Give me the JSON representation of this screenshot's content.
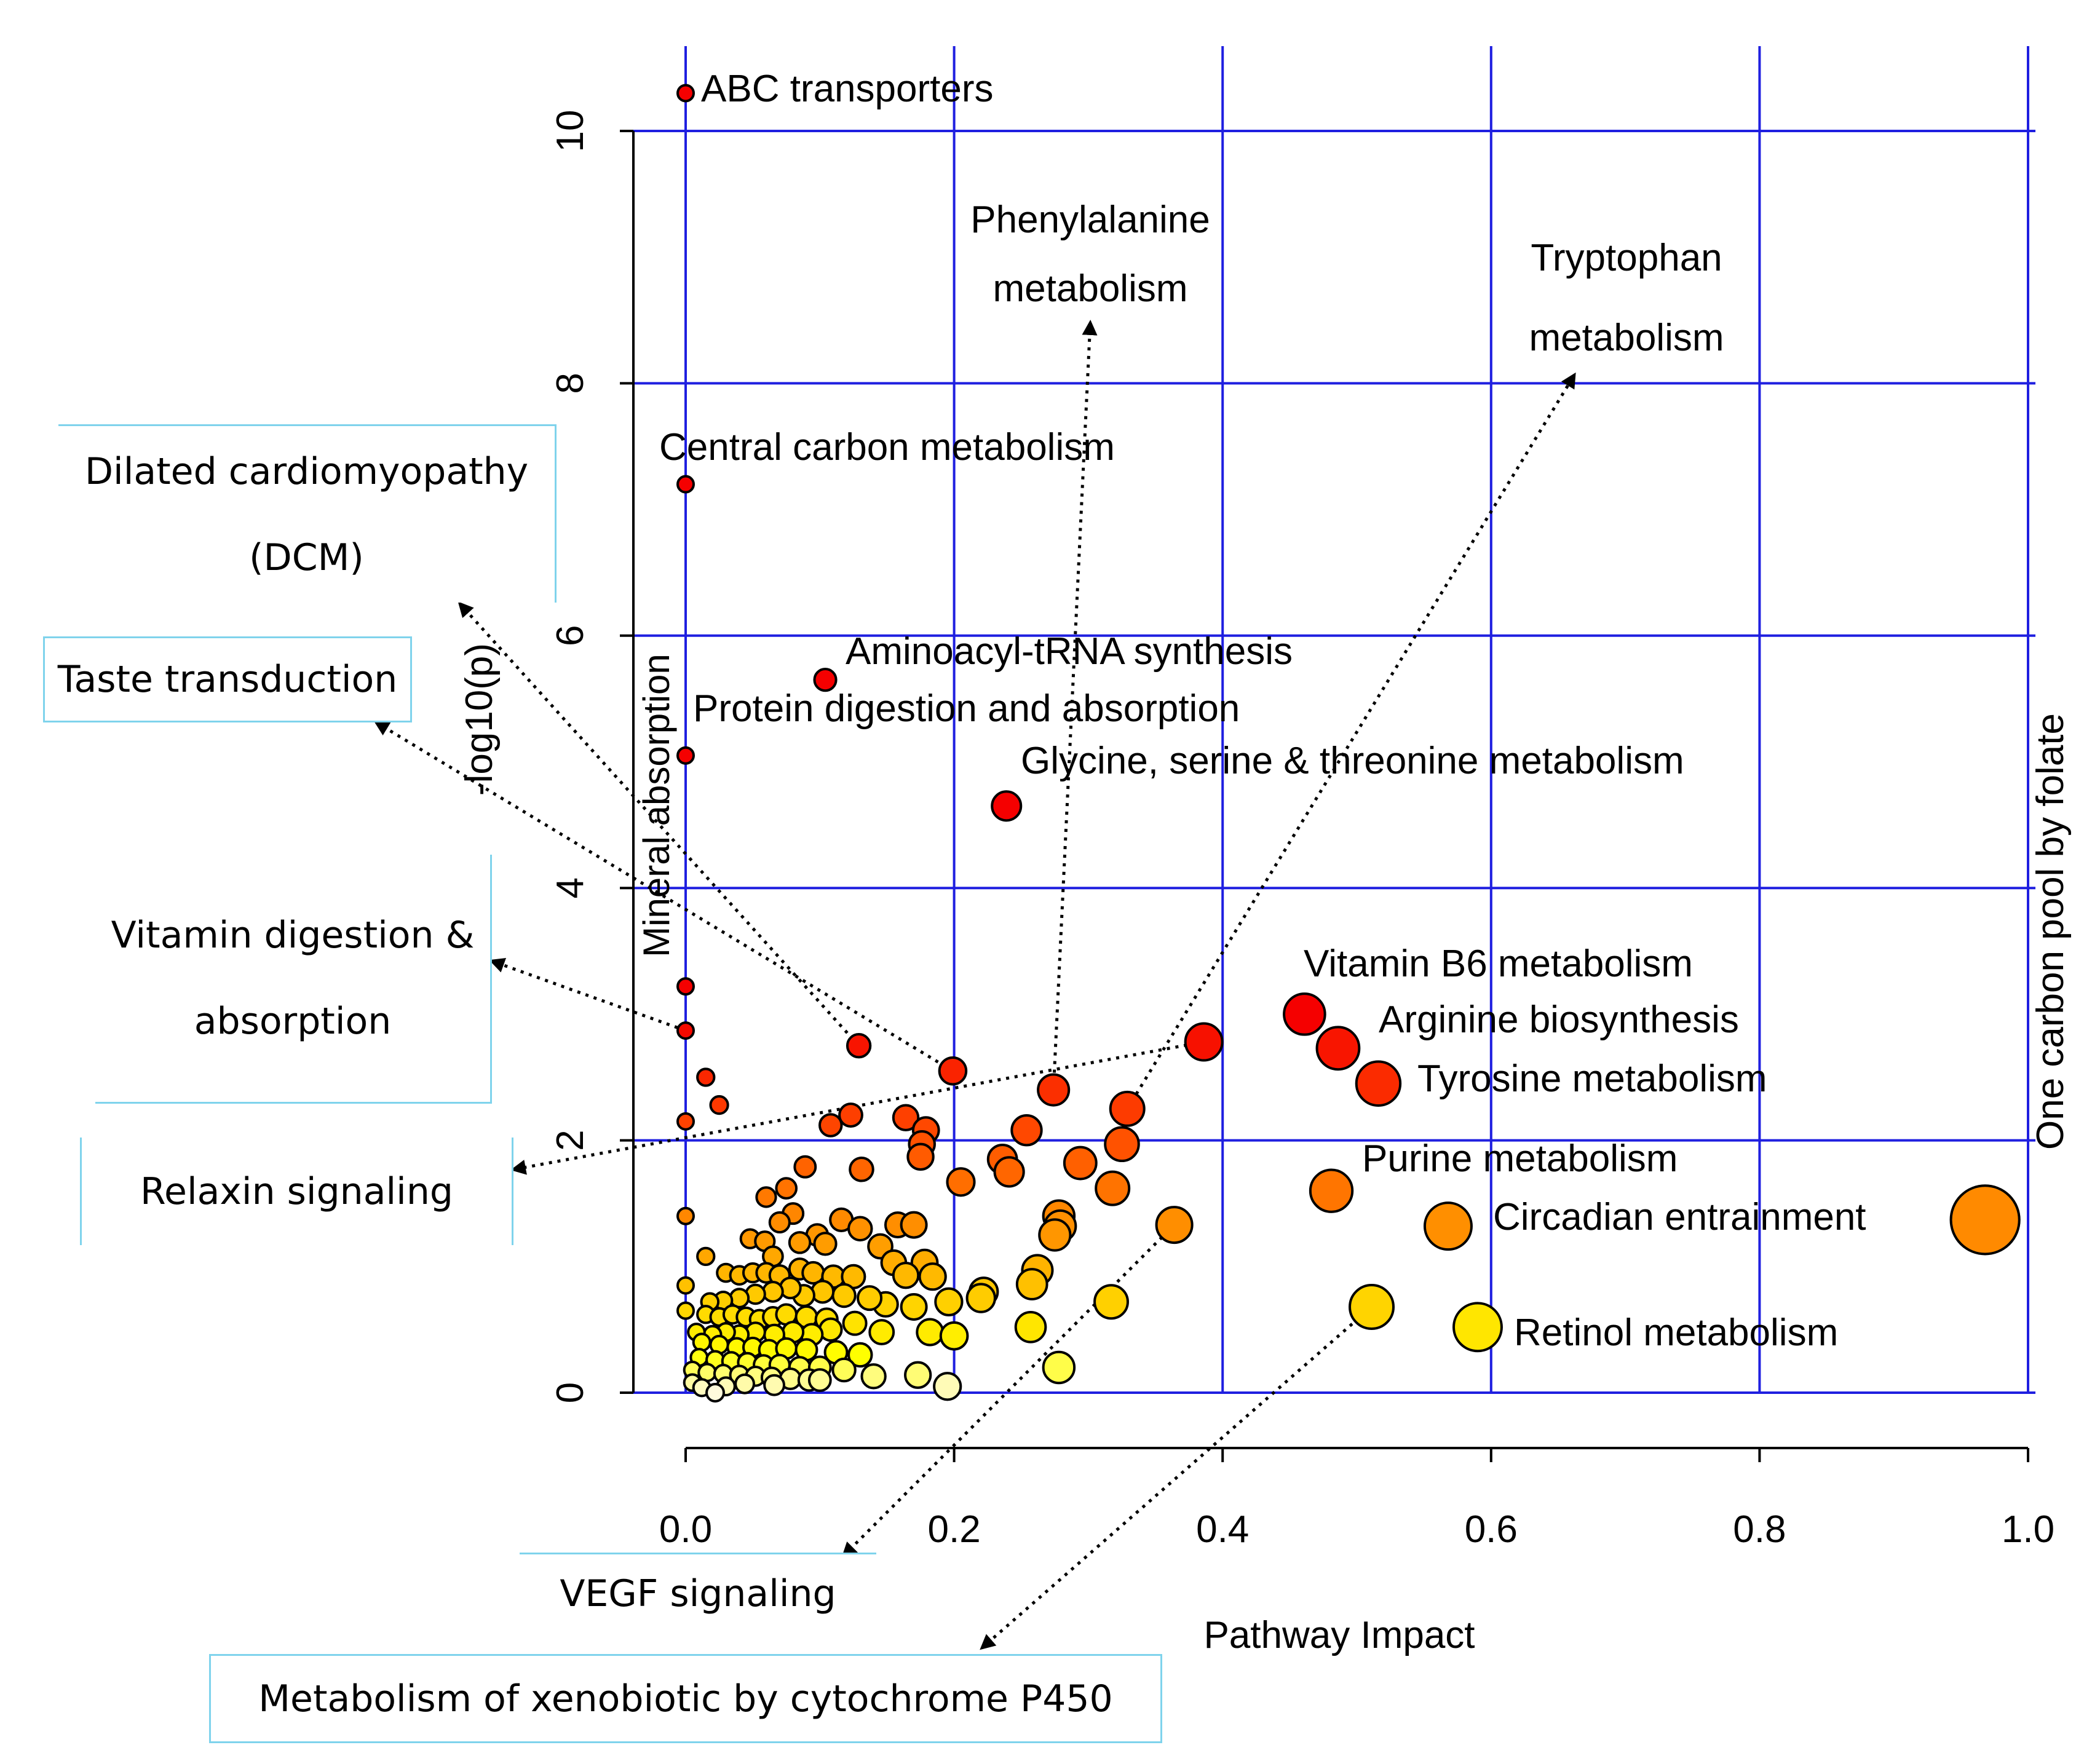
{
  "chart_data": {
    "type": "scatter",
    "title": "",
    "xlabel": "Pathway Impact",
    "ylabel": "-log10(p)",
    "xlim": [
      0.0,
      1.0
    ],
    "ylim": [
      0,
      10
    ],
    "x_ticks": [
      "0.0",
      "0.2",
      "0.4",
      "0.6",
      "0.8",
      "1.0"
    ],
    "y_ticks": [
      "0",
      "2",
      "4",
      "6",
      "8",
      "10"
    ],
    "grid": true,
    "color_scale": "p-value (white = low significance, yellow, orange, red = high significance)",
    "points": [
      {
        "x": 0.0,
        "y": 10.3,
        "label": "ABC transporters"
      },
      {
        "x": 0.0,
        "y": 7.2,
        "label": "Central carbon metabolism"
      },
      {
        "x": 0.104,
        "y": 5.65,
        "label": "Aminoacyl-tRNA synthesis"
      },
      {
        "x": 0.0,
        "y": 5.05,
        "label": "Protein digestion and absorption"
      },
      {
        "x": 0.239,
        "y": 4.65,
        "label": "Glycine, serine & threonine metabolism"
      },
      {
        "x": 0.461,
        "y": 3.0,
        "label": "Vitamin B6 metabolism"
      },
      {
        "x": 0.486,
        "y": 2.73,
        "label": "Arginine biosynthesis"
      },
      {
        "x": 0.516,
        "y": 2.45,
        "label": "Tyrosine metabolism"
      },
      {
        "x": 0.481,
        "y": 1.6,
        "label": "Purine metabolism"
      },
      {
        "x": 0.568,
        "y": 1.32,
        "label": "Circadian entrainment"
      },
      {
        "x": 0.59,
        "y": 0.52,
        "label": "Retinol metabolism"
      },
      {
        "x": 0.968,
        "y": 1.37,
        "label": "One carbon pool by folate"
      },
      {
        "x": 0.386,
        "y": 2.78,
        "label": ""
      },
      {
        "x": 0.0,
        "y": 3.22,
        "label": ""
      },
      {
        "x": 0.0,
        "y": 2.87,
        "label": ""
      },
      {
        "x": 0.015,
        "y": 2.5,
        "label": ""
      },
      {
        "x": 0.025,
        "y": 2.28,
        "label": ""
      },
      {
        "x": 0.0,
        "y": 2.15,
        "label": ""
      },
      {
        "x": 0.0,
        "y": 1.4,
        "label": ""
      },
      {
        "x": 0.0,
        "y": 0.85,
        "label": ""
      },
      {
        "x": 0.0,
        "y": 0.65,
        "label": ""
      },
      {
        "x": 0.129,
        "y": 2.75,
        "label": ""
      },
      {
        "x": 0.199,
        "y": 2.55,
        "label": ""
      },
      {
        "x": 0.274,
        "y": 2.4,
        "label": ""
      },
      {
        "x": 0.329,
        "y": 2.25,
        "label": ""
      },
      {
        "x": 0.123,
        "y": 2.2,
        "label": ""
      },
      {
        "x": 0.108,
        "y": 2.12,
        "label": ""
      },
      {
        "x": 0.164,
        "y": 2.18,
        "label": ""
      },
      {
        "x": 0.179,
        "y": 2.08,
        "label": ""
      },
      {
        "x": 0.254,
        "y": 2.08,
        "label": ""
      },
      {
        "x": 0.176,
        "y": 1.97,
        "label": ""
      },
      {
        "x": 0.175,
        "y": 1.87,
        "label": ""
      },
      {
        "x": 0.325,
        "y": 1.97,
        "label": ""
      },
      {
        "x": 0.236,
        "y": 1.85,
        "label": ""
      },
      {
        "x": 0.294,
        "y": 1.82,
        "label": ""
      },
      {
        "x": 0.089,
        "y": 1.79,
        "label": ""
      },
      {
        "x": 0.131,
        "y": 1.77,
        "label": ""
      },
      {
        "x": 0.241,
        "y": 1.75,
        "label": ""
      },
      {
        "x": 0.075,
        "y": 1.62,
        "label": ""
      },
      {
        "x": 0.205,
        "y": 1.67,
        "label": ""
      },
      {
        "x": 0.06,
        "y": 1.55,
        "label": ""
      },
      {
        "x": 0.318,
        "y": 1.62,
        "label": ""
      },
      {
        "x": 0.08,
        "y": 1.42,
        "label": ""
      },
      {
        "x": 0.07,
        "y": 1.35,
        "label": ""
      },
      {
        "x": 0.116,
        "y": 1.37,
        "label": ""
      },
      {
        "x": 0.158,
        "y": 1.33,
        "label": ""
      },
      {
        "x": 0.17,
        "y": 1.33,
        "label": ""
      },
      {
        "x": 0.278,
        "y": 1.4,
        "label": ""
      },
      {
        "x": 0.279,
        "y": 1.32,
        "label": ""
      },
      {
        "x": 0.364,
        "y": 1.33,
        "label": ""
      },
      {
        "x": 0.13,
        "y": 1.3,
        "label": ""
      },
      {
        "x": 0.275,
        "y": 1.25,
        "label": ""
      },
      {
        "x": 0.098,
        "y": 1.25,
        "label": ""
      },
      {
        "x": 0.048,
        "y": 1.22,
        "label": ""
      },
      {
        "x": 0.059,
        "y": 1.2,
        "label": ""
      },
      {
        "x": 0.085,
        "y": 1.19,
        "label": ""
      },
      {
        "x": 0.104,
        "y": 1.18,
        "label": ""
      },
      {
        "x": 0.145,
        "y": 1.16,
        "label": ""
      },
      {
        "x": 0.065,
        "y": 1.08,
        "label": ""
      },
      {
        "x": 0.015,
        "y": 1.08,
        "label": ""
      },
      {
        "x": 0.155,
        "y": 1.03,
        "label": ""
      },
      {
        "x": 0.178,
        "y": 1.03,
        "label": ""
      },
      {
        "x": 0.262,
        "y": 0.97,
        "label": ""
      },
      {
        "x": 0.258,
        "y": 0.86,
        "label": ""
      },
      {
        "x": 0.03,
        "y": 0.95,
        "label": ""
      },
      {
        "x": 0.04,
        "y": 0.93,
        "label": ""
      },
      {
        "x": 0.05,
        "y": 0.95,
        "label": ""
      },
      {
        "x": 0.06,
        "y": 0.95,
        "label": ""
      },
      {
        "x": 0.07,
        "y": 0.93,
        "label": ""
      },
      {
        "x": 0.085,
        "y": 0.98,
        "label": ""
      },
      {
        "x": 0.095,
        "y": 0.95,
        "label": ""
      },
      {
        "x": 0.11,
        "y": 0.92,
        "label": ""
      },
      {
        "x": 0.125,
        "y": 0.92,
        "label": ""
      },
      {
        "x": 0.164,
        "y": 0.93,
        "label": ""
      },
      {
        "x": 0.184,
        "y": 0.92,
        "label": ""
      },
      {
        "x": 0.222,
        "y": 0.8,
        "label": ""
      },
      {
        "x": 0.22,
        "y": 0.75,
        "label": ""
      },
      {
        "x": 0.317,
        "y": 0.72,
        "label": ""
      },
      {
        "x": 0.196,
        "y": 0.72,
        "label": ""
      },
      {
        "x": 0.149,
        "y": 0.7,
        "label": ""
      },
      {
        "x": 0.17,
        "y": 0.68,
        "label": ""
      },
      {
        "x": 0.137,
        "y": 0.75,
        "label": ""
      },
      {
        "x": 0.118,
        "y": 0.77,
        "label": ""
      },
      {
        "x": 0.102,
        "y": 0.8,
        "label": ""
      },
      {
        "x": 0.088,
        "y": 0.77,
        "label": ""
      },
      {
        "x": 0.078,
        "y": 0.83,
        "label": ""
      },
      {
        "x": 0.065,
        "y": 0.8,
        "label": ""
      },
      {
        "x": 0.052,
        "y": 0.78,
        "label": ""
      },
      {
        "x": 0.04,
        "y": 0.75,
        "label": ""
      },
      {
        "x": 0.028,
        "y": 0.73,
        "label": ""
      },
      {
        "x": 0.018,
        "y": 0.72,
        "label": ""
      },
      {
        "x": 0.015,
        "y": 0.62,
        "label": ""
      },
      {
        "x": 0.025,
        "y": 0.6,
        "label": ""
      },
      {
        "x": 0.035,
        "y": 0.62,
        "label": ""
      },
      {
        "x": 0.045,
        "y": 0.6,
        "label": ""
      },
      {
        "x": 0.055,
        "y": 0.58,
        "label": ""
      },
      {
        "x": 0.065,
        "y": 0.6,
        "label": ""
      },
      {
        "x": 0.075,
        "y": 0.62,
        "label": ""
      },
      {
        "x": 0.09,
        "y": 0.6,
        "label": ""
      },
      {
        "x": 0.105,
        "y": 0.58,
        "label": ""
      },
      {
        "x": 0.126,
        "y": 0.55,
        "label": ""
      },
      {
        "x": 0.257,
        "y": 0.52,
        "label": ""
      },
      {
        "x": 0.511,
        "y": 0.68,
        "label": ""
      },
      {
        "x": 0.182,
        "y": 0.48,
        "label": ""
      },
      {
        "x": 0.2,
        "y": 0.45,
        "label": ""
      },
      {
        "x": 0.146,
        "y": 0.48,
        "label": ""
      },
      {
        "x": 0.108,
        "y": 0.5,
        "label": ""
      },
      {
        "x": 0.094,
        "y": 0.46,
        "label": ""
      },
      {
        "x": 0.08,
        "y": 0.48,
        "label": ""
      },
      {
        "x": 0.066,
        "y": 0.46,
        "label": ""
      },
      {
        "x": 0.052,
        "y": 0.48,
        "label": ""
      },
      {
        "x": 0.04,
        "y": 0.46,
        "label": ""
      },
      {
        "x": 0.03,
        "y": 0.48,
        "label": ""
      },
      {
        "x": 0.02,
        "y": 0.46,
        "label": ""
      },
      {
        "x": 0.008,
        "y": 0.48,
        "label": ""
      },
      {
        "x": 0.012,
        "y": 0.4,
        "label": ""
      },
      {
        "x": 0.025,
        "y": 0.38,
        "label": ""
      },
      {
        "x": 0.038,
        "y": 0.36,
        "label": ""
      },
      {
        "x": 0.05,
        "y": 0.36,
        "label": ""
      },
      {
        "x": 0.062,
        "y": 0.34,
        "label": ""
      },
      {
        "x": 0.075,
        "y": 0.35,
        "label": ""
      },
      {
        "x": 0.09,
        "y": 0.34,
        "label": ""
      },
      {
        "x": 0.112,
        "y": 0.32,
        "label": ""
      },
      {
        "x": 0.13,
        "y": 0.3,
        "label": ""
      },
      {
        "x": 0.01,
        "y": 0.28,
        "label": ""
      },
      {
        "x": 0.022,
        "y": 0.26,
        "label": ""
      },
      {
        "x": 0.034,
        "y": 0.25,
        "label": ""
      },
      {
        "x": 0.046,
        "y": 0.24,
        "label": ""
      },
      {
        "x": 0.058,
        "y": 0.22,
        "label": ""
      },
      {
        "x": 0.07,
        "y": 0.22,
        "label": ""
      },
      {
        "x": 0.085,
        "y": 0.2,
        "label": ""
      },
      {
        "x": 0.1,
        "y": 0.2,
        "label": ""
      },
      {
        "x": 0.118,
        "y": 0.18,
        "label": ""
      },
      {
        "x": 0.005,
        "y": 0.18,
        "label": ""
      },
      {
        "x": 0.016,
        "y": 0.16,
        "label": ""
      },
      {
        "x": 0.028,
        "y": 0.15,
        "label": ""
      },
      {
        "x": 0.04,
        "y": 0.14,
        "label": ""
      },
      {
        "x": 0.052,
        "y": 0.13,
        "label": ""
      },
      {
        "x": 0.064,
        "y": 0.12,
        "label": ""
      },
      {
        "x": 0.078,
        "y": 0.11,
        "label": ""
      },
      {
        "x": 0.092,
        "y": 0.1,
        "label": ""
      },
      {
        "x": 0.14,
        "y": 0.13,
        "label": ""
      },
      {
        "x": 0.173,
        "y": 0.14,
        "label": ""
      },
      {
        "x": 0.278,
        "y": 0.2,
        "label": ""
      },
      {
        "x": 0.005,
        "y": 0.08,
        "label": ""
      },
      {
        "x": 0.03,
        "y": 0.05,
        "label": ""
      },
      {
        "x": 0.044,
        "y": 0.07,
        "label": ""
      },
      {
        "x": 0.066,
        "y": 0.06,
        "label": ""
      },
      {
        "x": 0.1,
        "y": 0.1,
        "label": ""
      },
      {
        "x": 0.195,
        "y": 0.05,
        "label": ""
      },
      {
        "x": 0.012,
        "y": 0.04,
        "label": ""
      },
      {
        "x": 0.022,
        "y": 0.0,
        "label": ""
      }
    ],
    "annotations": [
      {
        "text": "Phenylalanine metabolism",
        "lines": [
          "Phenylalanine",
          "metabolism"
        ],
        "boxed": false,
        "target": [
          0.274,
          2.4
        ]
      },
      {
        "text": "Tryptophan metabolism",
        "lines": [
          "Tryptophan",
          "metabolism"
        ],
        "boxed": false,
        "target": [
          0.329,
          2.25
        ]
      },
      {
        "text": "Mineral absorption",
        "lines": [
          "Mineral absorption"
        ],
        "boxed": false,
        "target": null
      },
      {
        "text": "Dilated cardiomyopathy (DCM)",
        "lines": [
          "Dilated cardiomyopathy",
          "(DCM)"
        ],
        "boxed": true,
        "target": [
          0.129,
          2.75
        ]
      },
      {
        "text": "Taste transduction",
        "lines": [
          "Taste transduction"
        ],
        "boxed": true,
        "target": [
          0.199,
          2.55
        ]
      },
      {
        "text": "Vitamin digestion & absorption",
        "lines": [
          "Vitamin digestion &",
          "absorption"
        ],
        "boxed": true,
        "target": [
          0.0,
          2.87
        ]
      },
      {
        "text": "Relaxin signaling",
        "lines": [
          "Relaxin signaling"
        ],
        "boxed": true,
        "target": [
          0.386,
          2.78
        ]
      },
      {
        "text": "VEGF signaling",
        "lines": [
          "VEGF signaling"
        ],
        "boxed": true,
        "target": [
          0.364,
          1.33
        ]
      },
      {
        "text": "Metabolism of xenobiotic by cytochrome P450",
        "lines": [
          "Metabolism of xenobiotic by cytochrome P450"
        ],
        "boxed": true,
        "target": [
          0.511,
          0.68
        ]
      }
    ]
  }
}
